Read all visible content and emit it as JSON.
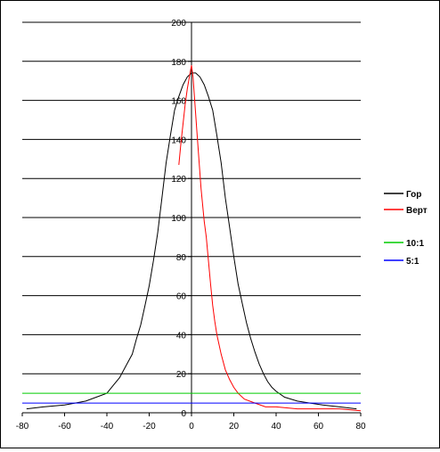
{
  "chart_data": {
    "type": "line",
    "title": "",
    "xlabel": "",
    "ylabel": "",
    "xlim": [
      -80,
      80
    ],
    "ylim": [
      0,
      200
    ],
    "x_ticks": [
      -80,
      -60,
      -40,
      -20,
      0,
      20,
      40,
      60,
      80
    ],
    "y_ticks": [
      0,
      20,
      40,
      60,
      80,
      100,
      120,
      140,
      160,
      180,
      200
    ],
    "grid": "horizontal",
    "legend_position": "right",
    "series": [
      {
        "name": "Гор",
        "color": "#000000",
        "points": [
          [
            -78,
            2
          ],
          [
            -70,
            3
          ],
          [
            -60,
            4
          ],
          [
            -55,
            5
          ],
          [
            -50,
            6
          ],
          [
            -45,
            8
          ],
          [
            -40,
            10
          ],
          [
            -37,
            14
          ],
          [
            -34,
            18
          ],
          [
            -31,
            24
          ],
          [
            -28,
            30
          ],
          [
            -26,
            38
          ],
          [
            -24,
            45
          ],
          [
            -22,
            55
          ],
          [
            -20,
            65
          ],
          [
            -18,
            78
          ],
          [
            -16,
            92
          ],
          [
            -14,
            110
          ],
          [
            -12,
            128
          ],
          [
            -10,
            142
          ],
          [
            -8,
            155
          ],
          [
            -6,
            162
          ],
          [
            -4,
            168
          ],
          [
            -2,
            172
          ],
          [
            0,
            174
          ],
          [
            2,
            174
          ],
          [
            4,
            172
          ],
          [
            6,
            168
          ],
          [
            8,
            162
          ],
          [
            10,
            155
          ],
          [
            12,
            142
          ],
          [
            14,
            128
          ],
          [
            16,
            110
          ],
          [
            18,
            95
          ],
          [
            20,
            80
          ],
          [
            22,
            66
          ],
          [
            24,
            56
          ],
          [
            26,
            46
          ],
          [
            28,
            38
          ],
          [
            30,
            31
          ],
          [
            32,
            25
          ],
          [
            34,
            20
          ],
          [
            36,
            16
          ],
          [
            38,
            13
          ],
          [
            40,
            11
          ],
          [
            44,
            8
          ],
          [
            50,
            6
          ],
          [
            56,
            5
          ],
          [
            62,
            4
          ],
          [
            70,
            3
          ],
          [
            78,
            2
          ]
        ]
      },
      {
        "name": "Верт",
        "color": "#ff0000",
        "points": [
          [
            -6,
            127
          ],
          [
            -5,
            138
          ],
          [
            -4,
            148
          ],
          [
            -3,
            158
          ],
          [
            -2,
            166
          ],
          [
            -1,
            172
          ],
          [
            0,
            178
          ],
          [
            0.7,
            172
          ],
          [
            1.5,
            160
          ],
          [
            2.5,
            145
          ],
          [
            3.5,
            130
          ],
          [
            4.5,
            115
          ],
          [
            6,
            98
          ],
          [
            7,
            90
          ],
          [
            8,
            78
          ],
          [
            9,
            66
          ],
          [
            10,
            55
          ],
          [
            11,
            47
          ],
          [
            12,
            40
          ],
          [
            14,
            30
          ],
          [
            16,
            22
          ],
          [
            18,
            17
          ],
          [
            20,
            13
          ],
          [
            22,
            10
          ],
          [
            25,
            7
          ],
          [
            30,
            5
          ],
          [
            35,
            3
          ],
          [
            40,
            3
          ],
          [
            50,
            2
          ],
          [
            60,
            2
          ],
          [
            70,
            2
          ],
          [
            80,
            1
          ]
        ]
      },
      {
        "name": "10:1",
        "color": "#00cc00",
        "points": [
          [
            -80,
            10
          ],
          [
            80,
            10
          ]
        ]
      },
      {
        "name": "5:1",
        "color": "#0000ff",
        "points": [
          [
            -80,
            5
          ],
          [
            80,
            5
          ]
        ]
      }
    ]
  }
}
